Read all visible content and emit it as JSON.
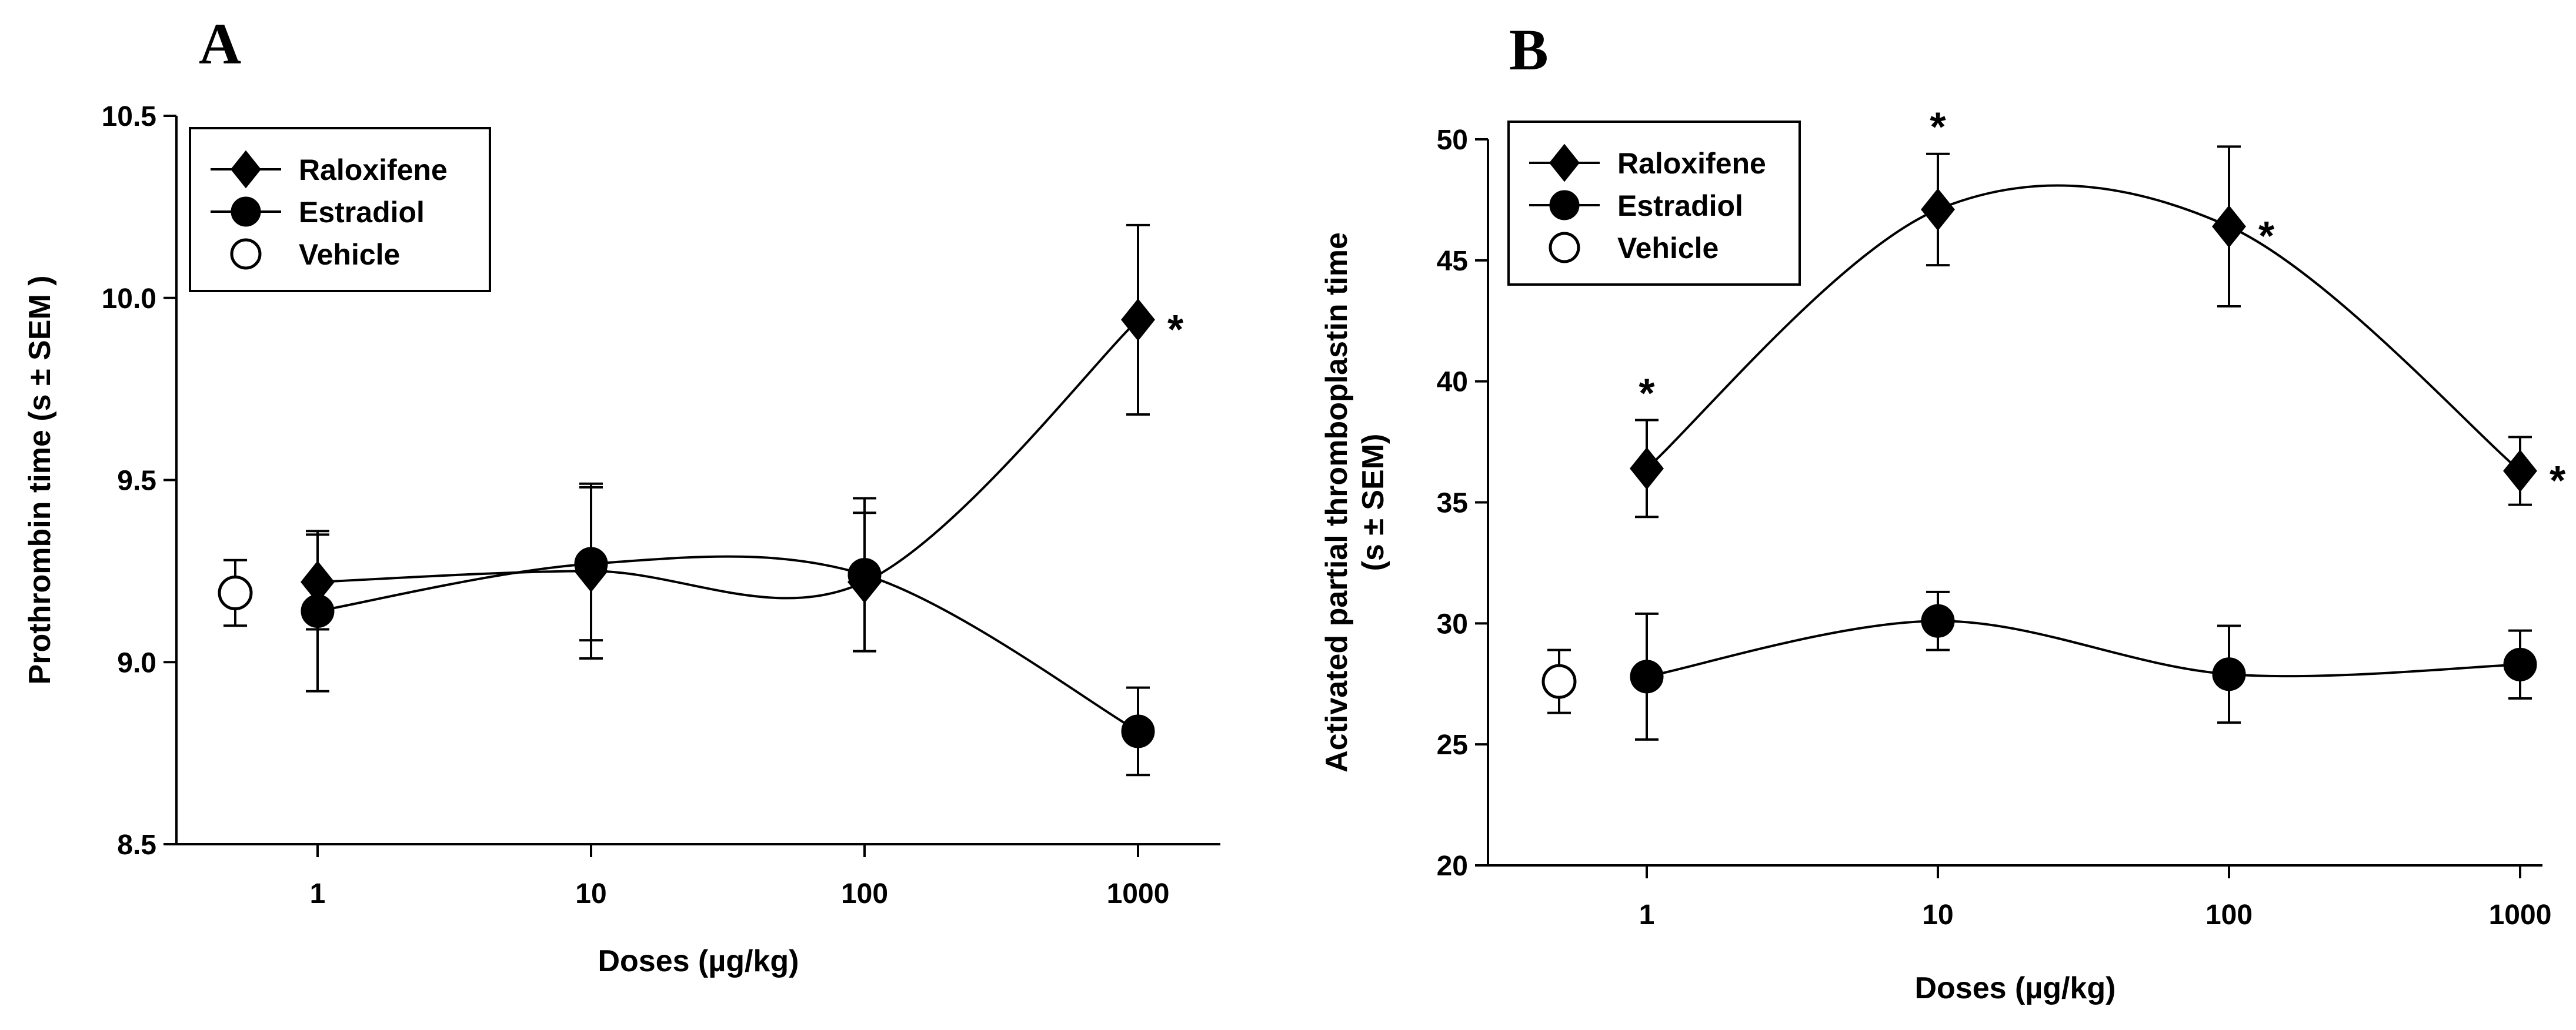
{
  "chart_data": [
    {
      "panel": "A",
      "type": "line",
      "x_scale": "log",
      "xlabel": "Doses (µg/kg)",
      "ylabel": "Prothrombin time (s ± SEM )",
      "ylim": [
        8.5,
        10.5
      ],
      "yticks": [
        8.5,
        9.0,
        9.5,
        10.0,
        10.5
      ],
      "ytick_labels": [
        "8.5",
        "9.0",
        "9.5",
        "10.0",
        "10.5"
      ],
      "xticks": [
        1,
        10,
        100,
        1000
      ],
      "xtick_labels": [
        "1",
        "10",
        "100",
        "1000"
      ],
      "legend_position": "top-left",
      "series": [
        {
          "name": "Raloxifene",
          "marker": "diamond",
          "x": [
            1,
            10,
            100,
            1000
          ],
          "y": [
            9.22,
            9.25,
            9.22,
            9.94
          ],
          "err": [
            0.13,
            0.24,
            0.19,
            0.26
          ],
          "significant": [
            false,
            false,
            false,
            true
          ]
        },
        {
          "name": "Estradiol",
          "marker": "circle",
          "x": [
            1,
            10,
            100,
            1000
          ],
          "y": [
            9.14,
            9.27,
            9.24,
            8.81
          ],
          "err": [
            0.22,
            0.21,
            0.21,
            0.12
          ],
          "significant": [
            false,
            false,
            false,
            false
          ]
        },
        {
          "name": "Vehicle",
          "marker": "open-circle",
          "x": [
            0.5
          ],
          "y": [
            9.19
          ],
          "err": [
            0.09
          ],
          "significant": [
            false
          ]
        }
      ],
      "significance_marker": "*"
    },
    {
      "panel": "B",
      "type": "line",
      "x_scale": "log",
      "xlabel": "Doses (µg/kg)",
      "ylabel_lines": [
        "Activated partial thromboplastin time",
        "(s ± SEM)"
      ],
      "ylim": [
        20,
        50
      ],
      "yticks": [
        20,
        25,
        30,
        35,
        40,
        45,
        50
      ],
      "ytick_labels": [
        "20",
        "25",
        "30",
        "35",
        "40",
        "45",
        "50"
      ],
      "xticks": [
        1,
        10,
        100,
        1000
      ],
      "xtick_labels": [
        "1",
        "10",
        "100",
        "1000"
      ],
      "legend_position": "top-left",
      "series": [
        {
          "name": "Raloxifene",
          "marker": "diamond",
          "x": [
            1,
            10,
            100,
            1000
          ],
          "y": [
            36.4,
            47.1,
            46.4,
            36.3
          ],
          "err": [
            2.0,
            2.3,
            3.3,
            1.4
          ],
          "significant": [
            true,
            true,
            true,
            true
          ]
        },
        {
          "name": "Estradiol",
          "marker": "circle",
          "x": [
            1,
            10,
            100,
            1000
          ],
          "y": [
            27.8,
            30.1,
            27.9,
            28.3
          ],
          "err": [
            2.6,
            1.2,
            2.0,
            1.4
          ],
          "significant": [
            false,
            false,
            false,
            false
          ]
        },
        {
          "name": "Vehicle",
          "marker": "open-circle",
          "x": [
            0.5
          ],
          "y": [
            27.6
          ],
          "err": [
            1.3
          ],
          "significant": [
            false
          ]
        }
      ],
      "significance_marker": "*"
    }
  ]
}
